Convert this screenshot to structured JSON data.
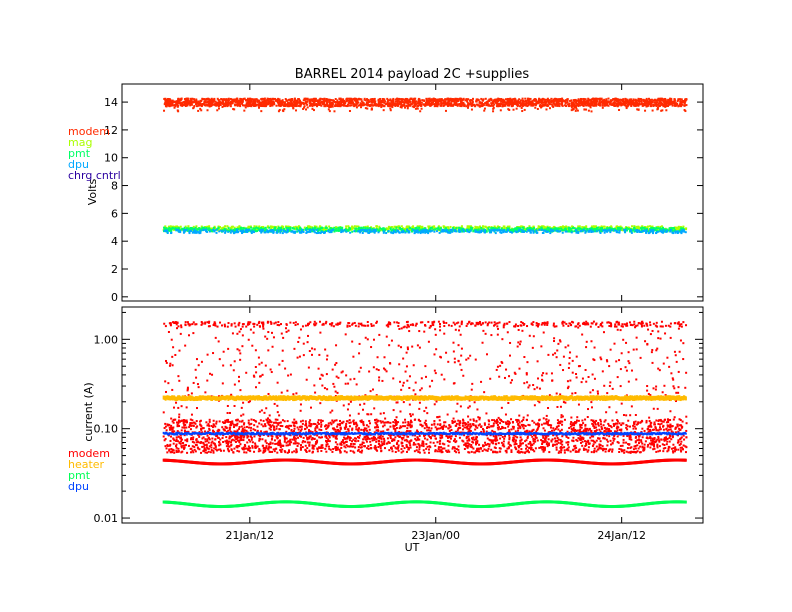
{
  "chart_data": [
    {
      "type": "scatter",
      "title": "BARREL 2014 payload 2C +supplies",
      "ylabel": "Volts",
      "xlabel": "",
      "ylim": [
        -0.3,
        15.3
      ],
      "yticks": [
        "0",
        "2",
        "4",
        "6",
        "8",
        "10",
        "12",
        "14"
      ],
      "yticks_values": [
        0,
        2,
        4,
        6,
        8,
        10,
        12,
        14
      ],
      "xlim": [
        0,
        1
      ],
      "legend_placement": "left-outside",
      "series": [
        {
          "name": "modem",
          "color": "#ff2a00",
          "level": 14.05,
          "spread_low": 13.4,
          "spread_high": 14.4,
          "x_range": [
            0.07,
            0.97
          ]
        },
        {
          "name": "mag",
          "color": "#aaff00",
          "level": 5.0,
          "spread_low": 4.85,
          "spread_high": 5.15,
          "x_range": [
            0.07,
            0.97
          ]
        },
        {
          "name": "pmt",
          "color": "#00ff66",
          "level": 4.9,
          "spread_low": 4.75,
          "spread_high": 5.05,
          "x_range": [
            0.07,
            0.97
          ]
        },
        {
          "name": "dpu",
          "color": "#00a8ff",
          "level": 4.78,
          "spread_low": 4.65,
          "spread_high": 4.9,
          "x_range": [
            0.07,
            0.97
          ]
        },
        {
          "name": "chrg cntrl",
          "color": "#2a00a0",
          "level": null,
          "x_range": [
            0.07,
            0.97
          ]
        }
      ]
    },
    {
      "type": "scatter",
      "title": "",
      "ylabel": "current (A)",
      "xlabel": "UT",
      "yscale": "log",
      "ylim": [
        0.0088,
        2.3
      ],
      "yticks": [
        "0.01",
        "0.10",
        "1.00"
      ],
      "yticks_values": [
        0.01,
        0.1,
        1.0
      ],
      "xticks": [
        "21Jan/12",
        "23Jan/00",
        "24Jan/12"
      ],
      "xticks_values": [
        0.22,
        0.54,
        0.86
      ],
      "xlim": [
        0,
        1
      ],
      "legend_placement": "left-outside",
      "series": [
        {
          "name": "modem",
          "color": "#ff0000",
          "baseline": 0.043,
          "band_low": 0.055,
          "band_high": 0.13,
          "scatter_high": 1.6,
          "x_range": [
            0.07,
            0.97
          ]
        },
        {
          "name": "heater",
          "color": "#ffbb00",
          "level": 0.22,
          "x_range": [
            0.07,
            0.97
          ]
        },
        {
          "name": "pmt",
          "color": "#00ff55",
          "level": 0.0145,
          "x_range": [
            0.07,
            0.97
          ]
        },
        {
          "name": "dpu",
          "color": "#0044ff",
          "level": 0.088,
          "x_range": [
            0.07,
            0.97
          ]
        }
      ]
    }
  ]
}
